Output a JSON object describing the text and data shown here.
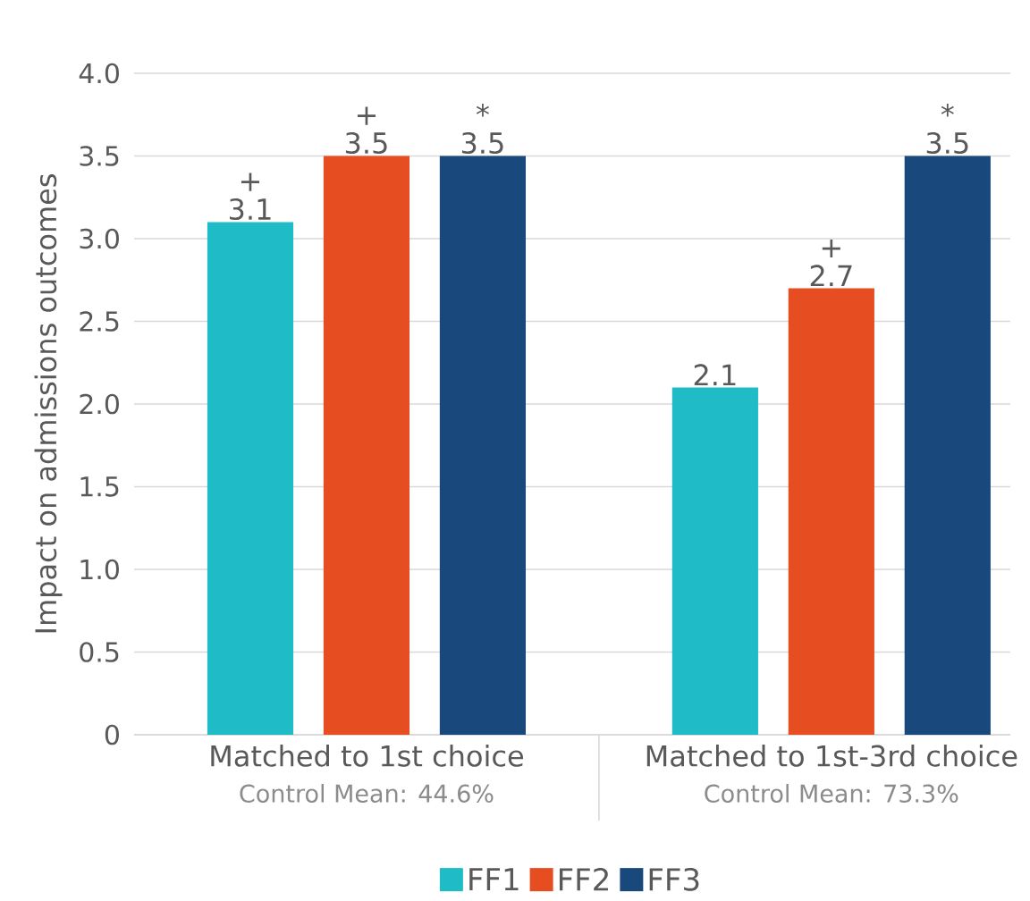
{
  "chart_data": {
    "type": "bar",
    "ylabel": "Impact on admissions outcomes",
    "categories": [
      "Matched to 1st choice",
      "Matched to 1st-3rd choice"
    ],
    "annotations": [
      "Control Mean: 44.6%",
      "Control Mean: 73.3%"
    ],
    "series": [
      {
        "name": "FF1",
        "color": "#1fbcc7",
        "values": [
          3.1,
          2.1
        ],
        "value_labels": [
          "+\n3.1",
          "2.1"
        ]
      },
      {
        "name": "FF2",
        "color": "#e64e22",
        "values": [
          3.5,
          2.7
        ],
        "value_labels": [
          "+\n3.5",
          "+\n2.7"
        ]
      },
      {
        "name": "FF3",
        "color": "#19497c",
        "values": [
          3.5,
          3.5
        ],
        "value_labels": [
          "*\n3.5",
          "*\n3.5"
        ]
      }
    ],
    "ylim": [
      0,
      4.0
    ],
    "yticks": [
      {
        "value": 0,
        "label": "0"
      },
      {
        "value": 0.5,
        "label": "0.5"
      },
      {
        "value": 1.0,
        "label": "1.0"
      },
      {
        "value": 1.5,
        "label": "1.5"
      },
      {
        "value": 2.0,
        "label": "2.0"
      },
      {
        "value": 2.5,
        "label": "2.5"
      },
      {
        "value": 3.0,
        "label": "3.0"
      },
      {
        "value": 3.5,
        "label": "3.5"
      },
      {
        "value": 4.0,
        "label": "4.0"
      }
    ],
    "grid": "y",
    "legend": "bottom"
  }
}
